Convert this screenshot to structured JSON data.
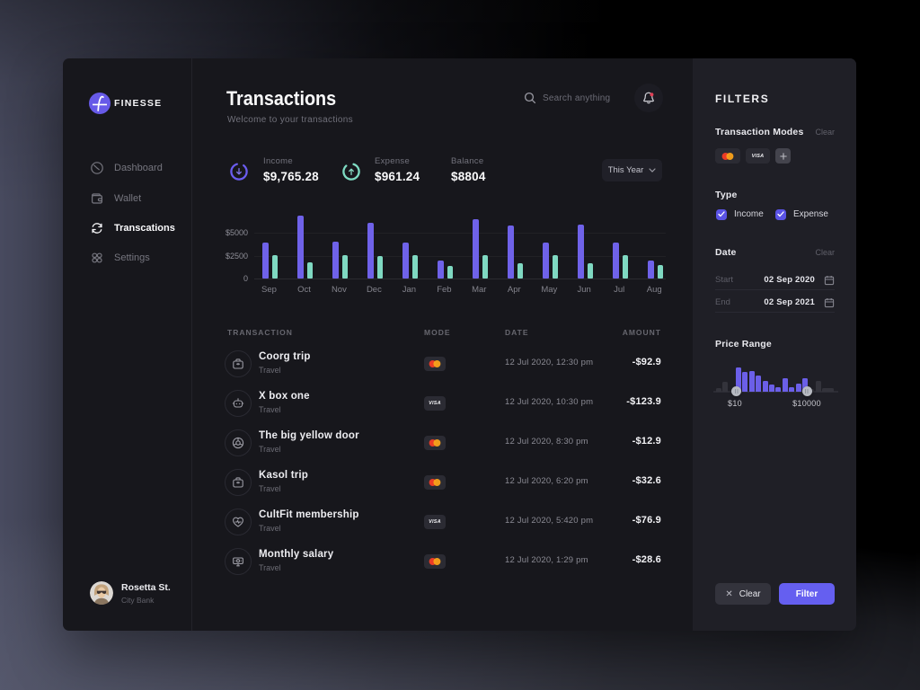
{
  "brand": {
    "name": "FINESSE"
  },
  "sidebar": {
    "items": [
      {
        "label": "Dashboard",
        "icon": "dashboard-icon",
        "active": false
      },
      {
        "label": "Wallet",
        "icon": "wallet-icon",
        "active": false
      },
      {
        "label": "Transcations",
        "icon": "sync-icon",
        "active": true
      },
      {
        "label": "Settings",
        "icon": "settings-icon",
        "active": false
      }
    ],
    "user": {
      "name": "Rosetta St.",
      "bank": "City Bank"
    }
  },
  "header": {
    "title": "Transactions",
    "subtitle": "Welcome to your transactions",
    "search_placeholder": "Search anything"
  },
  "stats": {
    "income": {
      "label": "Income",
      "value": "$9,765.28"
    },
    "expense": {
      "label": "Expense",
      "value": "$961.24"
    },
    "balance": {
      "label": "Balance",
      "value": "$8804"
    },
    "period": "This Year"
  },
  "chart_data": {
    "type": "bar",
    "categories": [
      "Sep",
      "Oct",
      "Nov",
      "Dec",
      "Jan",
      "Feb",
      "Mar",
      "Apr",
      "May",
      "Jun",
      "Jul",
      "Aug"
    ],
    "series": [
      {
        "name": "income",
        "color": "#6f62e9",
        "values": [
          4000,
          6900,
          4100,
          6100,
          4000,
          1950,
          6500,
          5850,
          4000,
          5900,
          4000,
          1950
        ]
      },
      {
        "name": "expense",
        "color": "#7fd9c2",
        "values": [
          2600,
          1750,
          2600,
          2450,
          2600,
          1350,
          2600,
          1650,
          2600,
          1650,
          2600,
          1450
        ]
      }
    ],
    "ylim": [
      0,
      7100
    ],
    "yticks": [
      {
        "label": "$5000",
        "value": 5000
      },
      {
        "label": "$2500",
        "value": 2500
      },
      {
        "label": "0",
        "value": 0
      }
    ],
    "title": "",
    "xlabel": "",
    "ylabel": "",
    "grid": true,
    "legend": false
  },
  "table": {
    "headers": [
      "TRANSACTION",
      "MODE",
      "DATE",
      "AMOUNT"
    ],
    "rows": [
      {
        "title": "Coorg trip",
        "sub": "Travel",
        "icon": "briefcase-icon",
        "mode": "mastercard",
        "date": "12 Jul 2020, 12:30 pm",
        "amount": "-$92.9"
      },
      {
        "title": "X box one",
        "sub": "Travel",
        "icon": "robot-icon",
        "mode": "visa",
        "date": "12 Jul 2020, 10:30 pm",
        "amount": "-$123.9"
      },
      {
        "title": "The big yellow door",
        "sub": "Travel",
        "icon": "donut-icon",
        "mode": "mastercard",
        "date": "12 Jul 2020, 8:30 pm",
        "amount": "-$12.9"
      },
      {
        "title": "Kasol trip",
        "sub": "Travel",
        "icon": "briefcase-icon",
        "mode": "mastercard",
        "date": "12 Jul 2020, 6:20 pm",
        "amount": "-$32.6"
      },
      {
        "title": "CultFit membership",
        "sub": "Travel",
        "icon": "heart-icon",
        "mode": "visa",
        "date": "12 Jul 2020, 5:420 pm",
        "amount": "-$76.9"
      },
      {
        "title": "Monthly salary",
        "sub": "Travel",
        "icon": "banknote-icon",
        "mode": "mastercard",
        "date": "12 Jul 2020, 1:29 pm",
        "amount": "-$28.6"
      }
    ],
    "visa_word": "VISA"
  },
  "filters": {
    "title": "FILTERS",
    "modes": {
      "label": "Transaction Modes",
      "clear": "Clear",
      "chips": [
        "mastercard",
        "visa",
        "add"
      ]
    },
    "type": {
      "label": "Type",
      "options": [
        {
          "label": "Income",
          "checked": true
        },
        {
          "label": "Expense",
          "checked": true
        }
      ]
    },
    "date": {
      "label": "Date",
      "clear": "Clear",
      "start": {
        "label": "Start",
        "value": "02 Sep 2020"
      },
      "end": {
        "label": "End",
        "value": "02 Sep 2021"
      }
    },
    "price_range": {
      "label": "Price Range",
      "min_label": "$10",
      "max_label": "$10000",
      "histogram_left_dim": [
        4,
        11
      ],
      "histogram_selected": [
        27,
        22,
        23,
        18,
        12,
        8.5,
        5.5,
        15,
        5.5,
        9,
        15
      ],
      "histogram_right_dim": [
        3,
        12,
        4
      ],
      "handle_min_x": 23.7,
      "handle_max_x": 102
    },
    "buttons": {
      "clear": "Clear",
      "filter": "Filter"
    }
  },
  "colors": {
    "accent_purple": "#655ff0",
    "teal": "#7fd9c2",
    "panel_bg": "#1f1f26",
    "window_bg": "#17171c",
    "mastercard_red": "#eb3b26",
    "mastercard_orange": "#f9a21a"
  }
}
